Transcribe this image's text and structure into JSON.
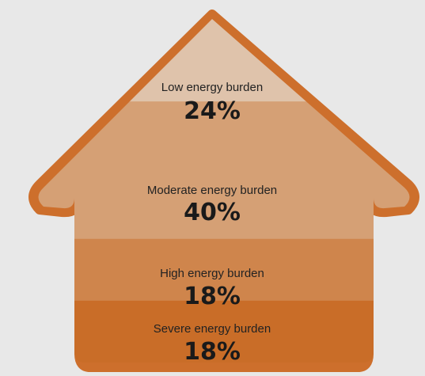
{
  "chart_data": {
    "type": "stacked-bar",
    "orientation": "vertical",
    "unit": "%",
    "segments": [
      {
        "label": "Low energy burden",
        "value": 24,
        "display": "24%",
        "color": "#dfc3ab"
      },
      {
        "label": "Moderate energy burden",
        "value": 40,
        "display": "40%",
        "color": "#d5a075"
      },
      {
        "label": "High energy burden",
        "value": 18,
        "display": "18%",
        "color": "#cf854c"
      },
      {
        "label": "Severe energy burden",
        "value": 18,
        "display": "18%",
        "color": "#c96d28"
      }
    ],
    "colors": {
      "outline": "#cd6f2c",
      "background": "#e8e8e8"
    }
  }
}
